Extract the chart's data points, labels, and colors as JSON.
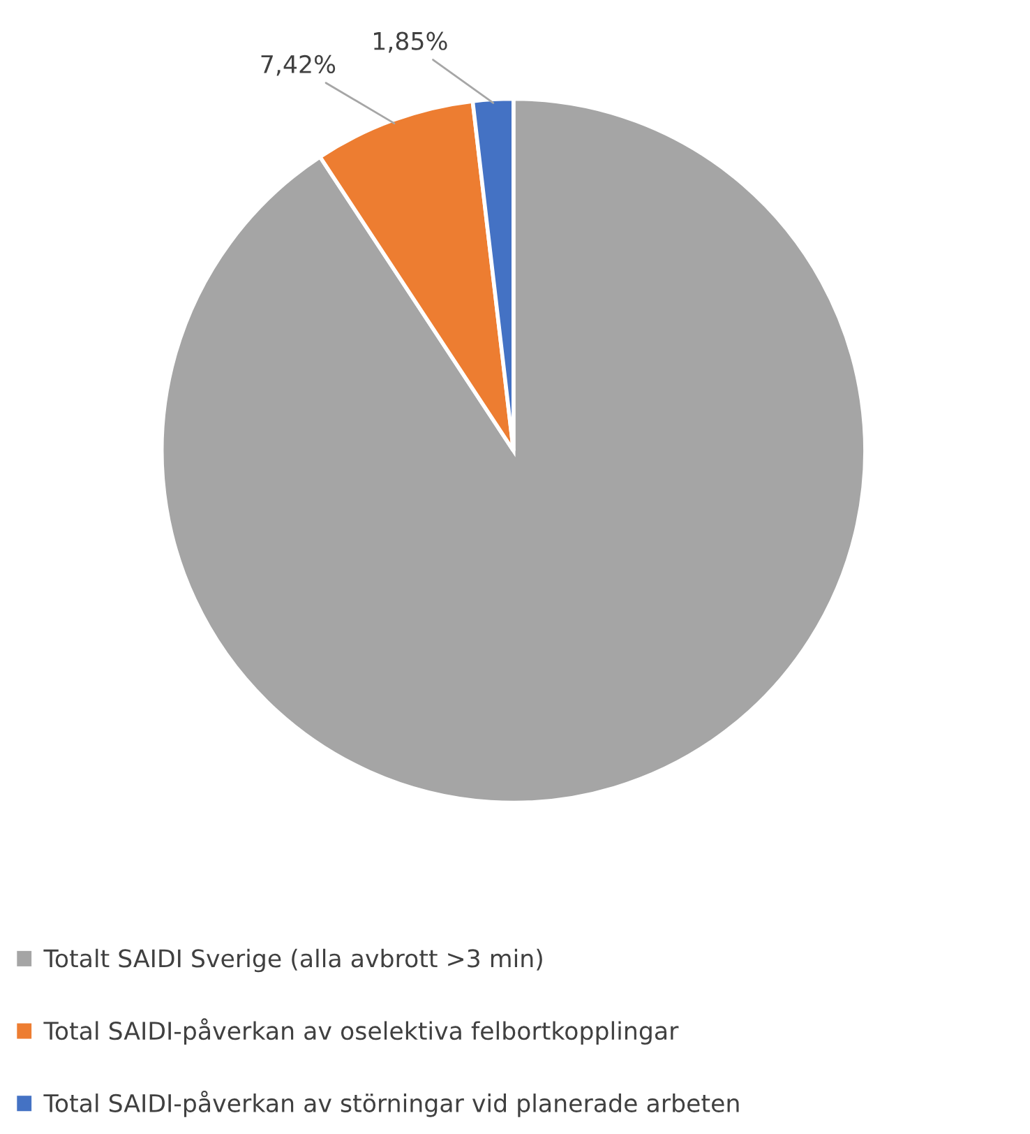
{
  "chart_data": {
    "type": "pie",
    "categories": [
      "Totalt SAIDI Sverige (alla avbrott >3 min)",
      "Total SAIDI-påverkan av oselektiva felbortkopplingar",
      "Total SAIDI-påverkan av störningar vid planerade arbeten"
    ],
    "values": [
      90.73,
      7.42,
      1.85
    ],
    "value_labels": [
      null,
      "7,42%",
      "1,85%"
    ],
    "colors": [
      "#a5a5a5",
      "#ed7d31",
      "#4472c4"
    ],
    "legend": "bottom"
  }
}
